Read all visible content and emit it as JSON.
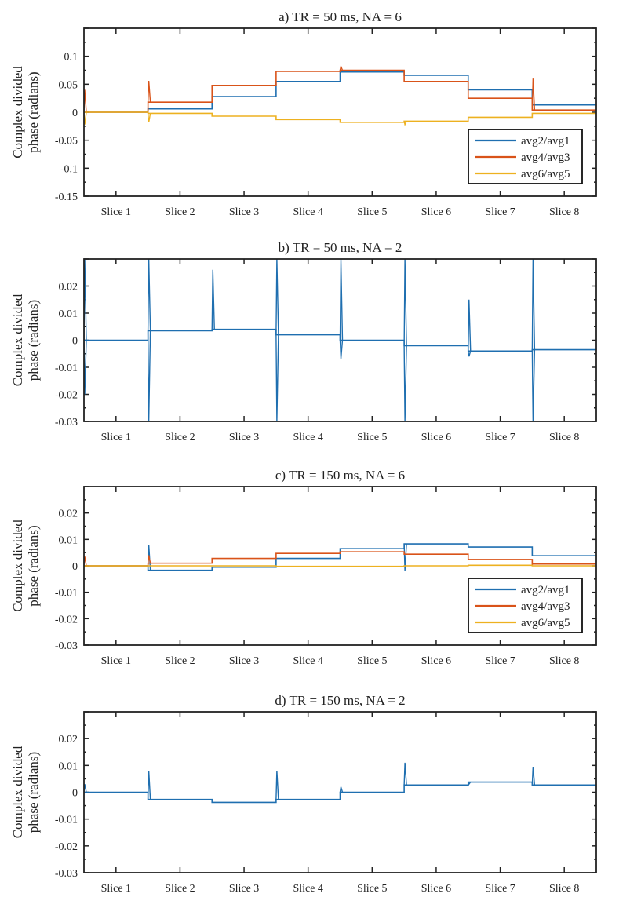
{
  "chart_data": [
    {
      "type": "line",
      "title": "a) TR = 50 ms, NA = 6",
      "ylabel": [
        "Complex divided",
        "phase (radians)"
      ],
      "categories": [
        "Slice 1",
        "Slice 2",
        "Slice 3",
        "Slice 4",
        "Slice 5",
        "Slice 6",
        "Slice 7",
        "Slice 8"
      ],
      "ylim": [
        -0.15,
        0.15
      ],
      "yticks": [
        -0.15,
        -0.1,
        -0.05,
        0,
        0.05,
        0.1
      ],
      "ytick_labels": [
        "-0.15",
        "-0.1",
        "-0.05",
        "0",
        "0.05",
        "0.1"
      ],
      "legend": "bottom-right",
      "series": [
        {
          "name": "avg2/avg1",
          "color": "#1f6fb0",
          "values": [
            0,
            0.006,
            0.028,
            0.055,
            0.072,
            0.066,
            0.04,
            0.013
          ],
          "spikes": []
        },
        {
          "name": "avg4/avg3",
          "color": "#d95319",
          "values": [
            0,
            0.018,
            0.048,
            0.073,
            0.075,
            0.055,
            0.025,
            0.004
          ],
          "spikes": [
            [
              0.5,
              0.04
            ],
            [
              1.5,
              0.056
            ],
            [
              4.5,
              0.082
            ],
            [
              7.5,
              0.06
            ]
          ]
        },
        {
          "name": "avg6/avg5",
          "color": "#edb120",
          "values": [
            0,
            -0.002,
            -0.007,
            -0.013,
            -0.018,
            -0.016,
            -0.009,
            -0.002
          ],
          "spikes": [
            [
              0.5,
              -0.022
            ],
            [
              1.5,
              -0.018
            ],
            [
              5.5,
              -0.022
            ]
          ]
        }
      ]
    },
    {
      "type": "line",
      "title": "b) TR = 50 ms, NA = 2",
      "ylabel": [
        "Complex divided",
        "phase (radians)"
      ],
      "categories": [
        "Slice 1",
        "Slice 2",
        "Slice 3",
        "Slice 4",
        "Slice 5",
        "Slice 6",
        "Slice 7",
        "Slice 8"
      ],
      "ylim": [
        -0.03,
        0.03
      ],
      "yticks": [
        -0.03,
        -0.02,
        -0.01,
        0,
        0.01,
        0.02
      ],
      "ytick_labels": [
        "-0.03",
        "-0.02",
        "-0.01",
        "0",
        "0.01",
        "0.02"
      ],
      "legend": "none",
      "series": [
        {
          "name": "avg2/avg1",
          "color": "#1f6fb0",
          "values": [
            0,
            0.0035,
            0.004,
            0.002,
            0,
            -0.002,
            -0.004,
            -0.0035
          ],
          "spikes": [
            [
              0.5,
              0.03
            ],
            [
              0.5,
              -0.02
            ],
            [
              1.5,
              0.03
            ],
            [
              1.5,
              -0.03
            ],
            [
              2.5,
              0.026
            ],
            [
              3.5,
              0.03
            ],
            [
              3.5,
              -0.03
            ],
            [
              4.5,
              0.03
            ],
            [
              4.5,
              -0.007
            ],
            [
              5.5,
              0.03
            ],
            [
              5.5,
              -0.03
            ],
            [
              6.5,
              0.015
            ],
            [
              6.5,
              -0.006
            ],
            [
              7.5,
              0.03
            ],
            [
              7.5,
              -0.03
            ]
          ]
        }
      ]
    },
    {
      "type": "line",
      "title": "c) TR = 150 ms, NA = 6",
      "ylabel": [
        "Complex divided",
        "phase (radians)"
      ],
      "categories": [
        "Slice 1",
        "Slice 2",
        "Slice 3",
        "Slice 4",
        "Slice 5",
        "Slice 6",
        "Slice 7",
        "Slice 8"
      ],
      "ylim": [
        -0.03,
        0.03
      ],
      "yticks": [
        -0.03,
        -0.02,
        -0.01,
        0,
        0.01,
        0.02
      ],
      "ytick_labels": [
        "-0.03",
        "-0.02",
        "-0.01",
        "0",
        "0.01",
        "0.02"
      ],
      "legend": "bottom-right",
      "series": [
        {
          "name": "avg2/avg1",
          "color": "#1f6fb0",
          "values": [
            0,
            -0.0017,
            -0.0005,
            0.0028,
            0.0065,
            0.0083,
            0.0071,
            0.0038
          ],
          "spikes": [
            [
              1.5,
              0.008
            ],
            [
              5.5,
              -0.0018
            ]
          ]
        },
        {
          "name": "avg4/avg3",
          "color": "#d95319",
          "values": [
            0,
            0.001,
            0.0028,
            0.0047,
            0.0053,
            0.0044,
            0.0024,
            0.0007
          ],
          "spikes": [
            [
              0.5,
              0.0035
            ],
            [
              1.5,
              0.004
            ]
          ]
        },
        {
          "name": "avg6/avg5",
          "color": "#edb120",
          "values": [
            0,
            0,
            0,
            -0.0002,
            -0.0002,
            0,
            0.0002,
            0
          ],
          "spikes": []
        }
      ]
    },
    {
      "type": "line",
      "title": "d) TR = 150 ms, NA = 2",
      "ylabel": [
        "Complex divided",
        "phase (radians)"
      ],
      "categories": [
        "Slice 1",
        "Slice 2",
        "Slice 3",
        "Slice 4",
        "Slice 5",
        "Slice 6",
        "Slice 7",
        "Slice 8"
      ],
      "ylim": [
        -0.03,
        0.03
      ],
      "yticks": [
        -0.03,
        -0.02,
        -0.01,
        0,
        0.01,
        0.02
      ],
      "ytick_labels": [
        "-0.03",
        "-0.02",
        "-0.01",
        "0",
        "0.01",
        "0.02"
      ],
      "legend": "none",
      "series": [
        {
          "name": "avg2/avg1",
          "color": "#1f6fb0",
          "values": [
            0,
            -0.0027,
            -0.0038,
            -0.0027,
            0,
            0.0027,
            0.0038,
            0.0027
          ],
          "spikes": [
            [
              0.5,
              0.003
            ],
            [
              1.5,
              0.008
            ],
            [
              3.5,
              0.008
            ],
            [
              4.5,
              0.002
            ],
            [
              5.5,
              0.011
            ],
            [
              6.5,
              0.003
            ],
            [
              7.5,
              0.0095
            ]
          ]
        }
      ]
    }
  ]
}
